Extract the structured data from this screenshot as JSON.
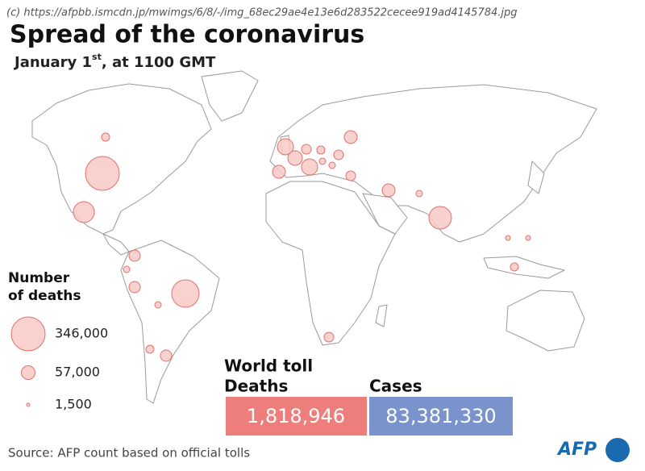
{
  "watermark": "(c) https://afpbb.ismcdn.jp/mwimgs/6/8/-/img_68ec29ae4e13e6d283522cecee919ad4145784.jpg",
  "header": {
    "title": "Spread of the coronavirus",
    "subtitle": {
      "date": "January 1",
      "suffix": "st",
      "rest": ", at 1100 GMT"
    }
  },
  "legend": {
    "title": [
      "Number",
      "of deaths"
    ],
    "items": [
      {
        "value": 346000,
        "label": "346,000"
      },
      {
        "value": 57000,
        "label": "57,000"
      },
      {
        "value": 1500,
        "label": "1,500"
      }
    ]
  },
  "toll": {
    "title": "World toll",
    "deaths": {
      "label": "Deaths",
      "value": "1,818,946"
    },
    "cases": {
      "label": "Cases",
      "value": "83,381,330"
    }
  },
  "source": "Source: AFP count based on official tolls",
  "logo": "AFP"
}
